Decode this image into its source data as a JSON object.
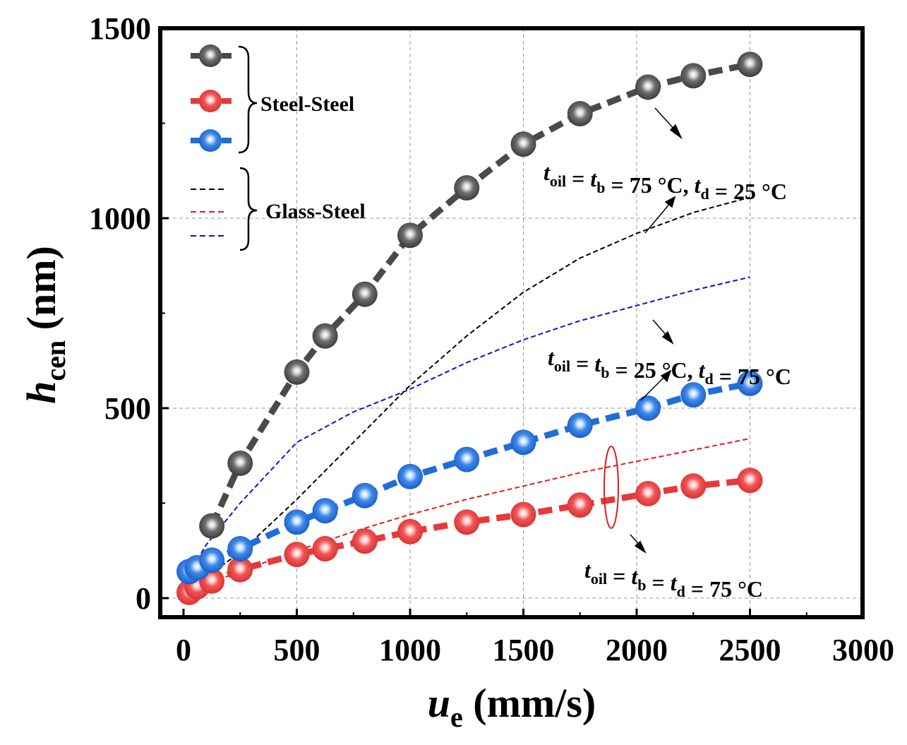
{
  "chart_data": {
    "type": "line",
    "title": "",
    "xlabel": {
      "main": "u",
      "sub": "e",
      "unit": "(mm/s)"
    },
    "ylabel": {
      "main": "h",
      "sub": "cen",
      "unit": "(nm)"
    },
    "xlim": [
      -100,
      3000
    ],
    "ylim": [
      -50,
      1500
    ],
    "xticks": [
      "0",
      "500",
      "1000",
      "1500",
      "2000",
      "2500",
      "3000"
    ],
    "yticks": [
      "0",
      "500",
      "1000",
      "1500"
    ],
    "grid": true,
    "colors": {
      "black": "#4a4a4a",
      "red": "#e8383c",
      "blue": "#1f6fd6",
      "dash_black": "#000000",
      "dash_red": "#e41a1a",
      "dash_blue": "#1010c8"
    },
    "series": [
      {
        "name": "Steel-Steel black",
        "group": "Steel-Steel",
        "style": "balls",
        "color": "black",
        "x": [
          125,
          250,
          500,
          625,
          800,
          1000,
          1250,
          1500,
          1750,
          2050,
          2250,
          2500
        ],
        "y": [
          190,
          355,
          595,
          690,
          800,
          955,
          1080,
          1195,
          1275,
          1345,
          1375,
          1405
        ]
      },
      {
        "name": "Steel-Steel red",
        "group": "Steel-Steel",
        "style": "balls",
        "color": "red",
        "x": [
          25,
          60,
          125,
          250,
          500,
          625,
          800,
          1000,
          1250,
          1500,
          1750,
          2050,
          2250,
          2500
        ],
        "y": [
          15,
          30,
          45,
          75,
          115,
          130,
          150,
          175,
          200,
          220,
          245,
          275,
          295,
          310
        ]
      },
      {
        "name": "Steel-Steel blue",
        "group": "Steel-Steel",
        "style": "balls",
        "color": "blue",
        "x": [
          25,
          60,
          125,
          250,
          500,
          625,
          800,
          1000,
          1250,
          1500,
          1750,
          2050,
          2250,
          2500
        ],
        "y": [
          70,
          80,
          100,
          130,
          200,
          230,
          270,
          320,
          365,
          410,
          455,
          500,
          535,
          565
        ]
      },
      {
        "name": "Glass-Steel black",
        "group": "Glass-Steel",
        "style": "dash",
        "color": "dash_black",
        "x": [
          25,
          250,
          500,
          750,
          1000,
          1250,
          1500,
          1750,
          2000,
          2250,
          2500
        ],
        "y": [
          25,
          120,
          260,
          410,
          560,
          690,
          805,
          895,
          960,
          1015,
          1055
        ]
      },
      {
        "name": "Glass-Steel red",
        "group": "Glass-Steel",
        "style": "dash",
        "color": "dash_red",
        "x": [
          25,
          250,
          500,
          750,
          1000,
          1250,
          1500,
          1750,
          2000,
          2250,
          2500
        ],
        "y": [
          20,
          70,
          125,
          175,
          220,
          260,
          295,
          330,
          360,
          390,
          420
        ]
      },
      {
        "name": "Glass-Steel blue",
        "group": "Glass-Steel",
        "style": "dash",
        "color": "dash_blue",
        "x": [
          25,
          100,
          250,
          500,
          750,
          1000,
          1250,
          1500,
          1750,
          2000,
          2250,
          2500
        ],
        "y": [
          65,
          140,
          250,
          410,
          490,
          550,
          620,
          680,
          730,
          770,
          810,
          845
        ]
      }
    ],
    "legend": {
      "group1_label": "Steel-Steel",
      "group2_label": "Glass-Steel"
    },
    "annotations": [
      {
        "id": "a1",
        "parts": [
          [
            "t",
            "oil"
          ],
          [
            " = "
          ],
          [
            "t",
            "b"
          ],
          [
            " = 75 °C, "
          ],
          [
            "t",
            "d"
          ],
          [
            " = 25 °C"
          ]
        ]
      },
      {
        "id": "a2",
        "parts": [
          [
            "t",
            "oil"
          ],
          [
            " = "
          ],
          [
            "t",
            "b"
          ],
          [
            " = 25 °C, "
          ],
          [
            "t",
            "d"
          ],
          [
            " = 75 °C"
          ]
        ]
      },
      {
        "id": "a3",
        "parts": [
          [
            "t",
            "oil"
          ],
          [
            " = "
          ],
          [
            "t",
            "b"
          ],
          [
            " = "
          ],
          [
            "t",
            "d"
          ],
          [
            " = 75 °C"
          ]
        ]
      }
    ]
  }
}
